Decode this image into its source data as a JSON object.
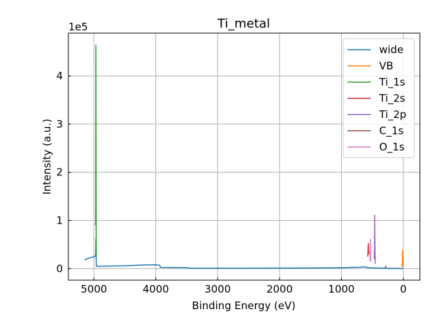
{
  "chart_data": {
    "type": "line",
    "title": "Ti_metal",
    "xlabel": "Binding Energy (eV)",
    "ylabel": "Intensity (a.u.)",
    "y_offset_label": "1e5",
    "xlim": [
      5413,
      -268
    ],
    "ylim": [
      -24000,
      489000
    ],
    "x_ticks": [
      5000,
      4000,
      3000,
      2000,
      1000,
      0
    ],
    "x_tick_labels": [
      "5000",
      "4000",
      "3000",
      "2000",
      "1000",
      "0"
    ],
    "y_ticks": [
      0,
      100000,
      200000,
      300000,
      400000
    ],
    "y_tick_labels": [
      "0",
      "1",
      "2",
      "3",
      "4"
    ],
    "grid": true,
    "legend_position": "top-right",
    "series": [
      {
        "name": "wide",
        "color": "#1f77b4",
        "points": [
          [
            5150,
            18000
          ],
          [
            5100,
            21000
          ],
          [
            5050,
            23000
          ],
          [
            4990,
            25000
          ],
          [
            4972,
            28000
          ],
          [
            4968,
            62000
          ],
          [
            4965,
            30000
          ],
          [
            4960,
            5000
          ],
          [
            4800,
            5200
          ],
          [
            4500,
            6000
          ],
          [
            4200,
            7500
          ],
          [
            4000,
            8000
          ],
          [
            3935,
            7000
          ],
          [
            3925,
            2500
          ],
          [
            3500,
            2200
          ],
          [
            3450,
            1000
          ],
          [
            2500,
            900
          ],
          [
            1500,
            1200
          ],
          [
            1000,
            2000
          ],
          [
            700,
            3000
          ],
          [
            620,
            4000
          ],
          [
            600,
            2500
          ],
          [
            500,
            1500
          ],
          [
            300,
            1000
          ],
          [
            100,
            500
          ],
          [
            0,
            0
          ]
        ]
      },
      {
        "name": "VB",
        "color": "#ff7f0e",
        "points": [
          [
            20,
            4000
          ],
          [
            15,
            12000
          ],
          [
            10,
            39000
          ],
          [
            5,
            20000
          ],
          [
            0,
            2000
          ]
        ]
      },
      {
        "name": "Ti_1s",
        "color": "#2ca02c",
        "points": [
          [
            4975,
            90000
          ],
          [
            4972,
            100000
          ],
          [
            4969,
            465000
          ],
          [
            4967,
            310000
          ],
          [
            4964,
            100000
          ],
          [
            4962,
            28000
          ]
        ]
      },
      {
        "name": "Ti_2s",
        "color": "#d62728",
        "points": [
          [
            575,
            25000
          ],
          [
            570,
            35000
          ],
          [
            566,
            53000
          ],
          [
            562,
            40000
          ],
          [
            558,
            30000
          ]
        ]
      },
      {
        "name": "Ti_2p",
        "color": "#9467bd",
        "points": [
          [
            470,
            20000
          ],
          [
            466,
            40000
          ],
          [
            463,
            112000
          ],
          [
            460,
            60000
          ],
          [
            456,
            30000
          ],
          [
            452,
            10000
          ]
        ]
      },
      {
        "name": "C_1s",
        "color": "#8c564b",
        "points": [
          [
            290,
            1500
          ],
          [
            285,
            4000
          ],
          [
            280,
            1500
          ]
        ]
      },
      {
        "name": "O_1s",
        "color": "#e377c2",
        "points": [
          [
            538,
            15000
          ],
          [
            534,
            40000
          ],
          [
            531,
            62000
          ],
          [
            528,
            30000
          ],
          [
            525,
            15000
          ]
        ]
      }
    ]
  }
}
